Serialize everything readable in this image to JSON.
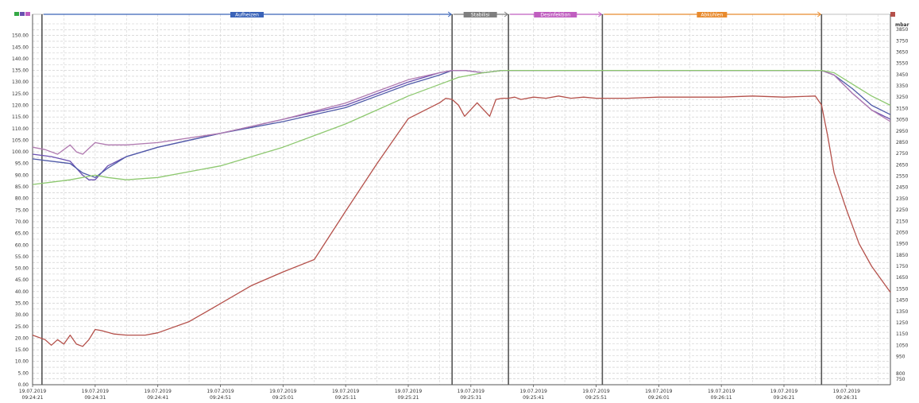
{
  "chart_data": {
    "type": "line",
    "title": "",
    "xlabel": "",
    "ylabel_left": "",
    "ylabel_right": "mbar",
    "ylim_left": [
      0,
      155
    ],
    "ylim_right": [
      700,
      3900
    ],
    "left_ticks": [
      "0.00",
      "5.00",
      "10.00",
      "15.00",
      "20.00",
      "25.00",
      "30.00",
      "35.00",
      "40.00",
      "45.00",
      "50.00",
      "55.00",
      "60.00",
      "65.00",
      "70.00",
      "75.00",
      "80.00",
      "85.00",
      "90.00",
      "95.00",
      "100.00",
      "105.00",
      "110.00",
      "115.00",
      "120.00",
      "125.00",
      "130.00",
      "135.00",
      "140.00",
      "145.00",
      "150.00"
    ],
    "right_ticks": [
      "750",
      "800",
      "950",
      "1050",
      "1150",
      "1250",
      "1350",
      "1450",
      "1550",
      "1650",
      "1750",
      "1850",
      "1950",
      "2050",
      "2150",
      "2250",
      "2350",
      "2450",
      "2550",
      "2650",
      "2750",
      "2850",
      "2950",
      "3050",
      "3150",
      "3250",
      "3350",
      "3450",
      "3550",
      "3650",
      "3750",
      "3850"
    ],
    "x_ticks": [
      {
        "date": "19.07.2019",
        "time": "09:24:21"
      },
      {
        "date": "19.07.2019",
        "time": "09:24:31"
      },
      {
        "date": "19.07.2019",
        "time": "09:24:41"
      },
      {
        "date": "19.07.2019",
        "time": "09:24:51"
      },
      {
        "date": "19.07.2019",
        "time": "09:25:01"
      },
      {
        "date": "19.07.2019",
        "time": "09:25:11"
      },
      {
        "date": "19.07.2019",
        "time": "09:25:21"
      },
      {
        "date": "19.07.2019",
        "time": "09:25:31"
      },
      {
        "date": "19.07.2019",
        "time": "09:25:41"
      },
      {
        "date": "19.07.2019",
        "time": "09:25:51"
      },
      {
        "date": "19.07.2019",
        "time": "09:26:01"
      },
      {
        "date": "19.07.2019",
        "time": "09:26:11"
      },
      {
        "date": "19.07.2019",
        "time": "09:26:21"
      },
      {
        "date": "19.07.2019",
        "time": "09:26:31"
      }
    ],
    "x_range": [
      0,
      137
    ],
    "grid": true,
    "phases": [
      {
        "label": "Aufheizen",
        "start": 1.5,
        "end": 67,
        "color": "#3a63b8"
      },
      {
        "label": "Stabilisi",
        "start": 67,
        "end": 76,
        "color": "#7f7f7f"
      },
      {
        "label": "Desinfektion",
        "start": 76,
        "end": 91,
        "color": "#c05ec0"
      },
      {
        "label": "Abkühlen",
        "start": 91,
        "end": 126,
        "color": "#e88a2d"
      }
    ],
    "phase_boundaries": [
      1.5,
      67,
      76,
      91,
      126
    ],
    "series": [
      {
        "name": "",
        "color": "#6a4fb0",
        "axis": "left",
        "x": [
          0,
          3,
          6,
          8,
          9,
          10,
          12,
          15,
          20,
          30,
          40,
          50,
          55,
          60,
          65,
          67,
          69,
          72,
          75,
          80,
          90,
          100,
          110,
          120,
          126,
          128,
          131,
          134,
          137
        ],
        "y": [
          99,
          98,
          96,
          90,
          88,
          88,
          94,
          98,
          102,
          108,
          114,
          120,
          125,
          130,
          134,
          135,
          135,
          134,
          135,
          135,
          135,
          135,
          135,
          135,
          135,
          133,
          125,
          118,
          114
        ]
      },
      {
        "name": "",
        "color": "#4f5aa8",
        "axis": "left",
        "x": [
          0,
          3,
          6,
          8,
          10,
          12,
          15,
          20,
          30,
          40,
          50,
          55,
          60,
          65,
          67,
          69,
          72,
          75,
          80,
          90,
          100,
          110,
          120,
          126,
          128,
          131,
          134,
          137
        ],
        "y": [
          97,
          96,
          95,
          91,
          89,
          93,
          98,
          102,
          108,
          113,
          119,
          124,
          129,
          133,
          135,
          135,
          134,
          135,
          135,
          135,
          135,
          135,
          135,
          135,
          133,
          127,
          120,
          116
        ]
      },
      {
        "name": "",
        "color": "#b07ab0",
        "axis": "left",
        "x": [
          0,
          2,
          4,
          6,
          7,
          8,
          10,
          12,
          15,
          20,
          30,
          40,
          50,
          55,
          60,
          65,
          67,
          69,
          72,
          75,
          80,
          90,
          100,
          110,
          120,
          126,
          128,
          131,
          134,
          137
        ],
        "y": [
          102,
          101,
          99,
          103,
          100,
          99,
          104,
          103,
          103,
          104,
          108,
          114,
          121,
          126,
          131,
          134,
          135,
          135,
          134,
          135,
          135,
          135,
          135,
          135,
          135,
          135,
          133,
          125,
          118,
          113
        ]
      },
      {
        "name": "",
        "color": "#8dc86f",
        "axis": "left",
        "x": [
          0,
          3,
          6,
          10,
          12,
          15,
          20,
          30,
          40,
          50,
          55,
          60,
          65,
          68,
          70,
          72,
          75,
          80,
          90,
          100,
          110,
          120,
          126,
          128,
          131,
          134,
          137
        ],
        "y": [
          86,
          87,
          88,
          90,
          89,
          88,
          89,
          94,
          102,
          112,
          118,
          124,
          129,
          132,
          133,
          134,
          135,
          135,
          135,
          135,
          135,
          135,
          135,
          134,
          129,
          124,
          120
        ]
      },
      {
        "name": "",
        "color": "#b4504a",
        "axis": "right",
        "x": [
          0,
          2,
          3,
          4,
          5,
          6,
          7,
          8,
          9,
          10,
          11,
          13,
          15,
          18,
          20,
          25,
          30,
          35,
          40,
          45,
          50,
          55,
          60,
          65,
          66,
          67,
          68,
          69,
          70,
          71,
          72,
          73,
          74,
          75,
          76,
          77,
          78,
          80,
          82,
          84,
          86,
          88,
          90,
          95,
          100,
          110,
          115,
          120,
          125,
          126,
          127,
          128,
          130,
          132,
          134,
          137
        ],
        "y": [
          1140,
          1100,
          1050,
          1100,
          1060,
          1140,
          1060,
          1040,
          1100,
          1190,
          1180,
          1150,
          1140,
          1140,
          1160,
          1260,
          1420,
          1580,
          1700,
          1810,
          2240,
          2660,
          3060,
          3200,
          3240,
          3230,
          3180,
          3080,
          3140,
          3200,
          3140,
          3080,
          3230,
          3240,
          3240,
          3250,
          3230,
          3250,
          3240,
          3260,
          3240,
          3250,
          3240,
          3240,
          3250,
          3250,
          3260,
          3250,
          3260,
          3180,
          2900,
          2580,
          2250,
          1950,
          1750,
          1520
        ]
      }
    ]
  }
}
